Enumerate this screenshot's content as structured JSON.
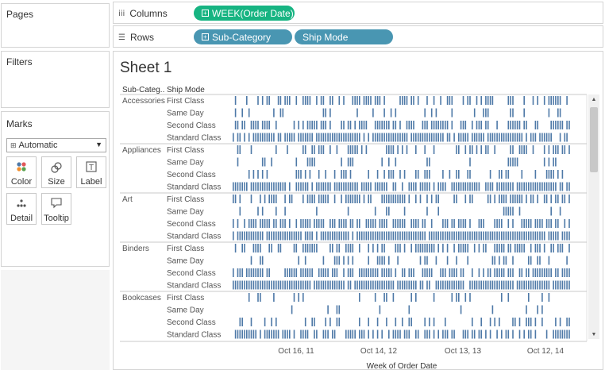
{
  "panes": {
    "pages": "Pages",
    "filters": "Filters",
    "marks": "Marks"
  },
  "marks_card": {
    "type": "Automatic",
    "buttons": [
      {
        "key": "color",
        "label": "Color"
      },
      {
        "key": "size",
        "label": "Size"
      },
      {
        "key": "label",
        "label": "Label"
      },
      {
        "key": "detail",
        "label": "Detail"
      },
      {
        "key": "tooltip",
        "label": "Tooltip"
      }
    ]
  },
  "shelves": {
    "columns": {
      "label": "Columns",
      "pills": [
        {
          "text": "WEEK(Order Date)",
          "color": "#17b482"
        }
      ]
    },
    "rows": {
      "label": "Rows",
      "pills": [
        {
          "text": "Sub-Category",
          "color": "#4996b2"
        },
        {
          "text": "Ship Mode",
          "color": "#4996b2"
        }
      ]
    }
  },
  "sheet": {
    "title": "Sheet 1",
    "headers": {
      "sub_category": "Sub-Categ..",
      "ship_mode": "Ship Mode"
    },
    "x_axis_title": "Week of Order Date",
    "x_ticks": [
      "Oct 16, 11",
      "Oct 14, 12",
      "Oct 13, 13",
      "Oct 12, 14"
    ],
    "mark_color": "#4e79a7"
  },
  "chart_data": {
    "type": "gantt",
    "x": "Week of Order Date",
    "x_ticks": [
      "Oct 16, 11",
      "Oct 14, 12",
      "Oct 13, 13",
      "Oct 12, 14"
    ],
    "rows": [
      {
        "sub_category": "Accessories",
        "modes": [
          {
            "ship_mode": "First Class",
            "density": 0.5
          },
          {
            "ship_mode": "Same Day",
            "density": 0.2
          },
          {
            "ship_mode": "Second Class",
            "density": 0.6
          },
          {
            "ship_mode": "Standard Class",
            "density": 0.85
          }
        ]
      },
      {
        "sub_category": "Appliances",
        "modes": [
          {
            "ship_mode": "First Class",
            "density": 0.35
          },
          {
            "ship_mode": "Same Day",
            "density": 0.15
          },
          {
            "ship_mode": "Second Class",
            "density": 0.4
          },
          {
            "ship_mode": "Standard Class",
            "density": 0.8
          }
        ]
      },
      {
        "sub_category": "Art",
        "modes": [
          {
            "ship_mode": "First Class",
            "density": 0.55
          },
          {
            "ship_mode": "Same Day",
            "density": 0.2
          },
          {
            "ship_mode": "Second Class",
            "density": 0.65
          },
          {
            "ship_mode": "Standard Class",
            "density": 0.95
          }
        ]
      },
      {
        "sub_category": "Binders",
        "modes": [
          {
            "ship_mode": "First Class",
            "density": 0.6
          },
          {
            "ship_mode": "Same Day",
            "density": 0.25
          },
          {
            "ship_mode": "Second Class",
            "density": 0.75
          },
          {
            "ship_mode": "Standard Class",
            "density": 0.97
          }
        ]
      },
      {
        "sub_category": "Bookcases",
        "modes": [
          {
            "ship_mode": "First Class",
            "density": 0.2
          },
          {
            "ship_mode": "Same Day",
            "density": 0.06
          },
          {
            "ship_mode": "Second Class",
            "density": 0.3
          },
          {
            "ship_mode": "Standard Class",
            "density": 0.6
          }
        ]
      }
    ]
  }
}
